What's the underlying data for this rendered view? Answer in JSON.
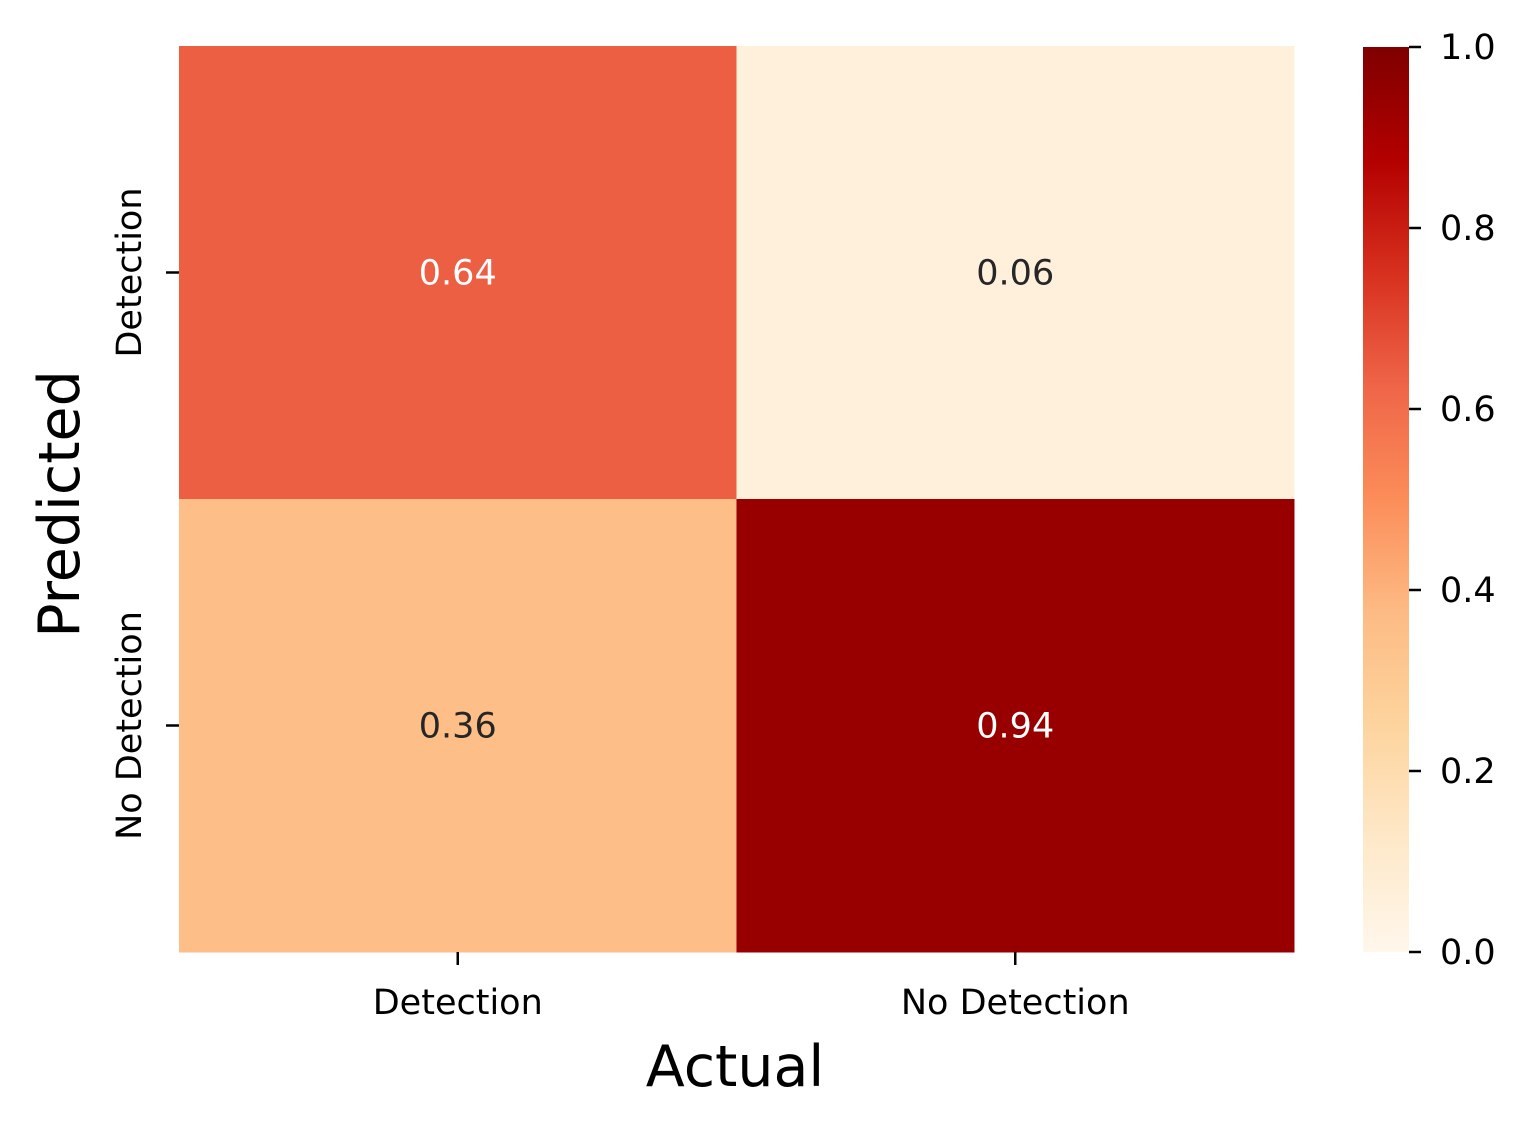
{
  "chart_data": {
    "type": "heatmap",
    "title": "",
    "xlabel": "Actual",
    "ylabel": "Predicted",
    "x_categories": [
      "Detection",
      "No Detection"
    ],
    "y_categories": [
      "Detection",
      "No Detection"
    ],
    "values": [
      [
        0.64,
        0.06
      ],
      [
        0.36,
        0.94
      ]
    ],
    "value_labels": [
      [
        "0.64",
        "0.06"
      ],
      [
        "0.36",
        "0.94"
      ]
    ],
    "colorbar": {
      "range": [
        0.0,
        1.0
      ],
      "ticks": [
        0.0,
        0.2,
        0.4,
        0.6,
        0.8,
        1.0
      ],
      "tick_labels": [
        "0.0",
        "0.2",
        "0.4",
        "0.6",
        "0.8",
        "1.0"
      ]
    },
    "colormap": "OrRd",
    "colormap_stops": [
      [
        0.0,
        "#fff7ec"
      ],
      [
        0.125,
        "#fee8c8"
      ],
      [
        0.25,
        "#fdd49e"
      ],
      [
        0.375,
        "#fdbb84"
      ],
      [
        0.5,
        "#fc8d59"
      ],
      [
        0.625,
        "#ef6548"
      ],
      [
        0.75,
        "#d7301f"
      ],
      [
        0.875,
        "#b30000"
      ],
      [
        1.0,
        "#7f0000"
      ]
    ],
    "grid": false,
    "legend": "none"
  }
}
